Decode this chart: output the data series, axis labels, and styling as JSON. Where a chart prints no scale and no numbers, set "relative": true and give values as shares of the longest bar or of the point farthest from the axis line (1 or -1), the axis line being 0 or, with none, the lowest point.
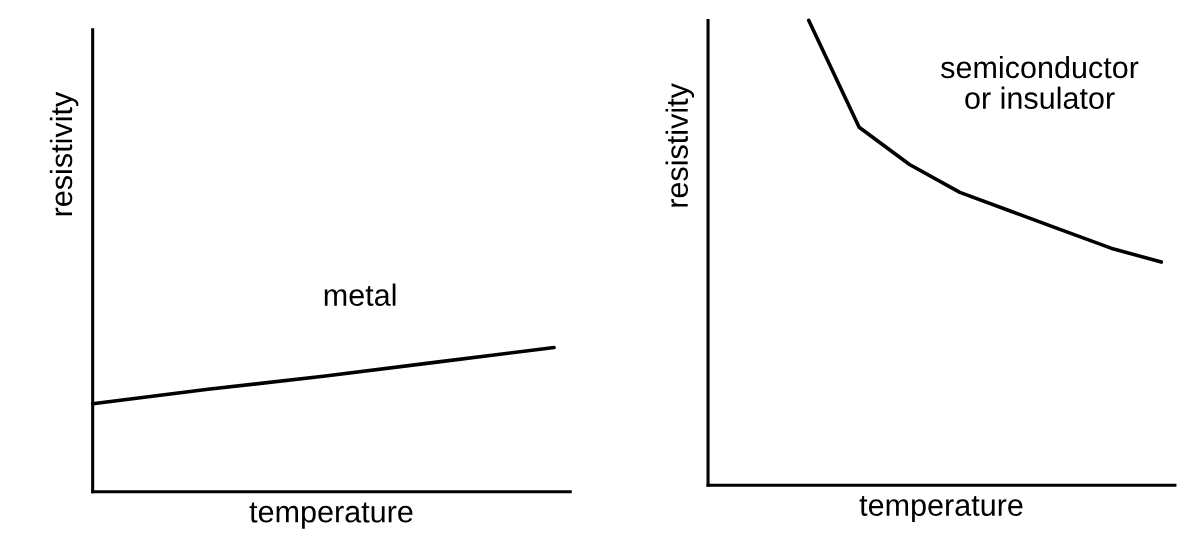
{
  "chart_data": [
    {
      "type": "line",
      "relative": true,
      "xlabel": "temperature",
      "ylabel": "resistivity",
      "categories": [
        null,
        null,
        null,
        null,
        null
      ],
      "series": [
        {
          "color": "#000000",
          "values": [
            0.61,
            0.71,
            0.8,
            0.9,
            1
          ]
        }
      ],
      "annotations": [
        "metal"
      ],
      "tick_labels": false,
      "marker": "none",
      "line_style": "solid"
    },
    {
      "type": "line",
      "relative": true,
      "xlabel": "temperature",
      "ylabel": "resistivity",
      "categories": [
        null,
        null,
        null,
        null,
        null,
        null,
        null,
        null,
        null,
        null
      ],
      "series": [
        {
          "color": "#000000",
          "values": [
            null,
            null,
            1,
            0.77,
            0.69,
            0.63,
            0.59,
            0.55,
            0.51,
            0.48
          ]
        }
      ],
      "annotations": [
        "semiconductor\nor insulator"
      ],
      "tick_labels": false,
      "marker": "none",
      "line_style": "solid"
    }
  ]
}
